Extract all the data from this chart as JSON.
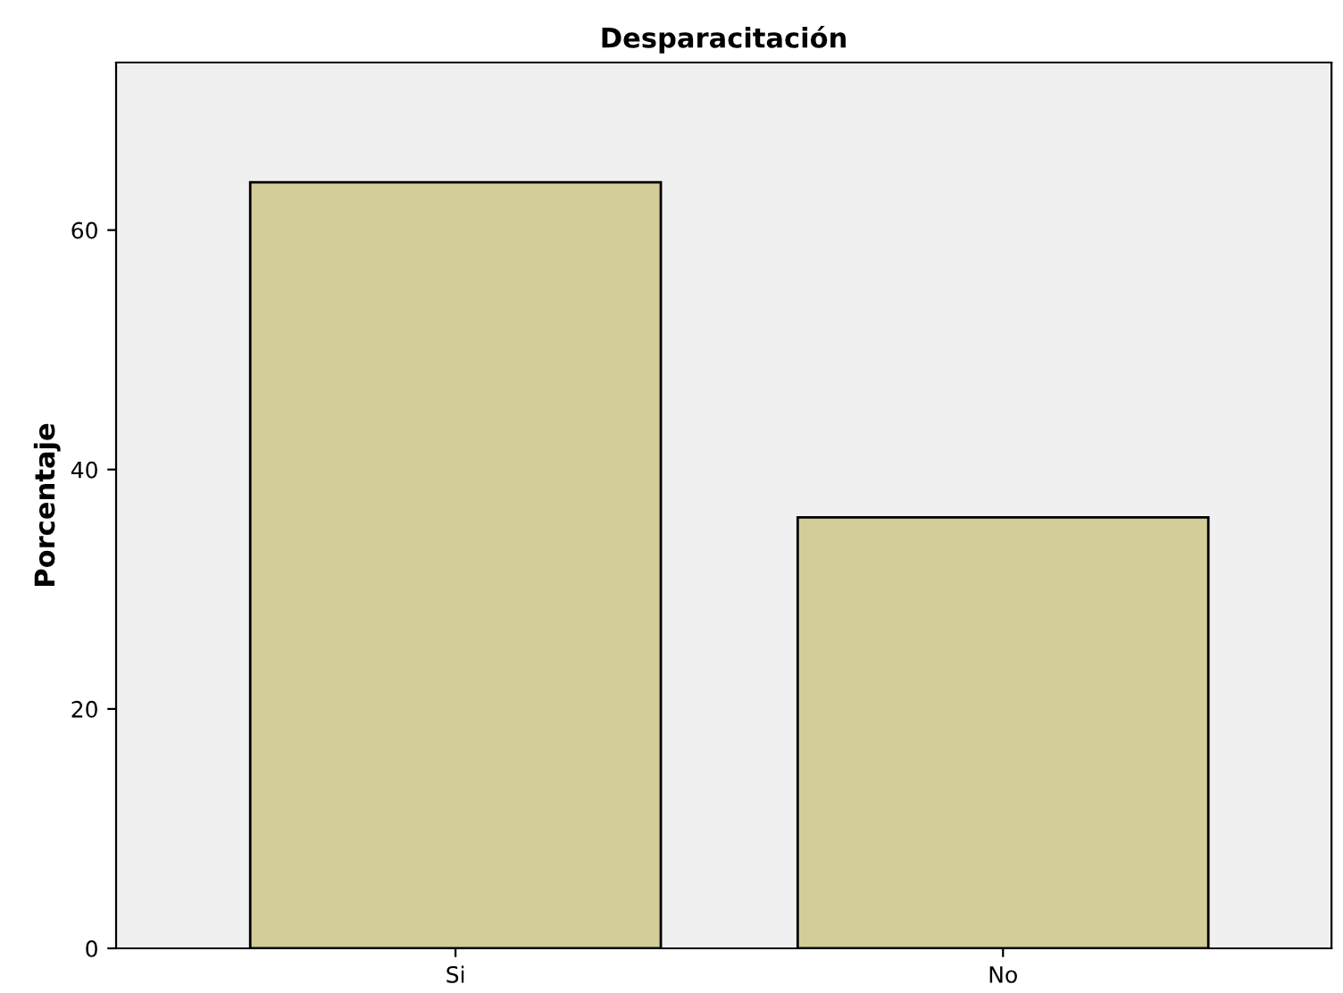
{
  "chart_data": {
    "type": "bar",
    "title": "Desparacitación",
    "ylabel": "Porcentaje",
    "categories": [
      "Si",
      "No"
    ],
    "values": [
      64,
      36
    ],
    "color": "#d3ce97",
    "ylim": [
      0,
      74
    ],
    "yticks": [
      0,
      20,
      40,
      60
    ],
    "grid": false
  }
}
